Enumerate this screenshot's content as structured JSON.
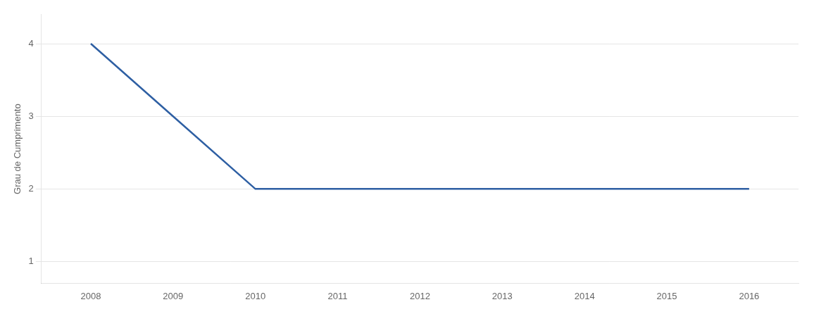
{
  "chart_data": {
    "type": "line",
    "x": [
      2008,
      2009,
      2010,
      2011,
      2012,
      2013,
      2014,
      2015,
      2016
    ],
    "values": [
      4,
      3,
      2,
      2,
      2,
      2,
      2,
      2,
      2
    ],
    "color": "#2e5fa3",
    "ylabel": "Grau de Cumprimento",
    "xlim": [
      2007.4,
      2016.6
    ],
    "xticks": [
      2008,
      2009,
      2010,
      2011,
      2012,
      2013,
      2014,
      2015,
      2016
    ],
    "ylim": [
      0.7,
      4.4
    ],
    "yticks": [
      1,
      2,
      3,
      4
    ],
    "grid": "y"
  }
}
